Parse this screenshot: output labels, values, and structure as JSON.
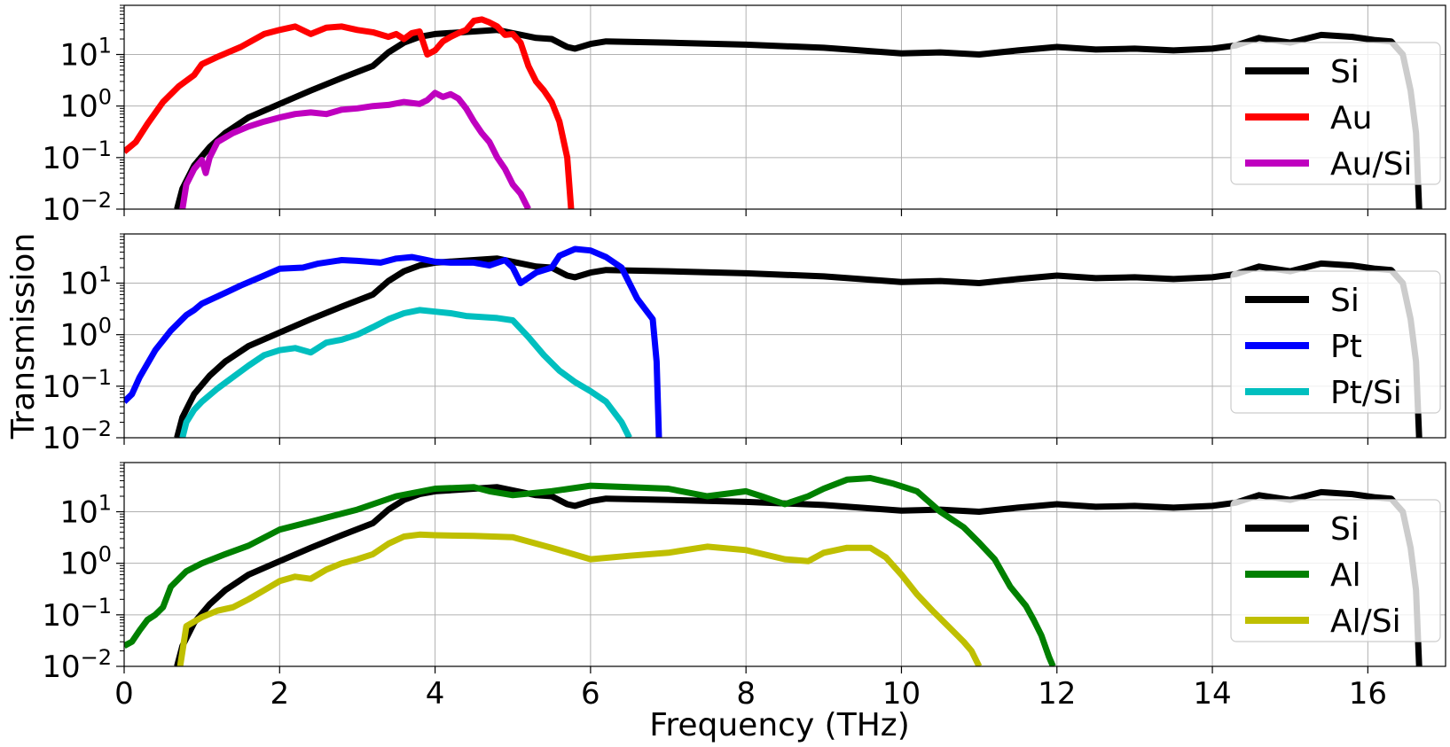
{
  "chart_data": {
    "type": "line",
    "xlabel": "Frequency (THz)",
    "ylabel": "Transmission",
    "xscale": "linear",
    "yscale": "log",
    "xlim": [
      0,
      17
    ],
    "ylim": [
      0.01,
      90
    ],
    "grid": true,
    "x_ticks": [
      0,
      2,
      4,
      6,
      8,
      10,
      12,
      14,
      16
    ],
    "x_tick_labels": [
      "0",
      "2",
      "4",
      "6",
      "8",
      "10",
      "12",
      "14",
      "16"
    ],
    "y_ticks": [
      0.01,
      0.1,
      1,
      10
    ],
    "y_tick_labels": [
      {
        "base": "10",
        "exp": "−2"
      },
      {
        "base": "10",
        "exp": "−1"
      },
      {
        "base": "10",
        "exp": "0"
      },
      {
        "base": "10",
        "exp": "1"
      }
    ],
    "panels": [
      {
        "legend_location": "right",
        "series": [
          {
            "name": "Si",
            "color": "#000000",
            "x": [
              0.68,
              0.75,
              0.9,
              1.1,
              1.3,
              1.6,
              2.0,
              2.4,
              2.8,
              3.2,
              3.4,
              3.6,
              3.8,
              4.0,
              4.5,
              4.8,
              5.0,
              5.3,
              5.5,
              5.7,
              5.8,
              6.0,
              6.2,
              7,
              8,
              9,
              10,
              10.5,
              11,
              11.5,
              12,
              12.5,
              13,
              13.5,
              14,
              14.3,
              14.6,
              15,
              15.4,
              15.8,
              16.1,
              16.3,
              16.45,
              16.55,
              16.62,
              16.66
            ],
            "y": [
              0.01,
              0.025,
              0.07,
              0.16,
              0.3,
              0.6,
              1.1,
              2,
              3.5,
              6,
              11,
              17,
              22,
              25,
              28,
              30,
              26,
              21,
              20,
              14,
              13,
              16,
              18,
              17,
              15.5,
              13.5,
              10.5,
              11,
              10,
              12,
              14,
              12.5,
              13,
              12,
              13,
              15,
              21,
              17,
              24,
              22,
              19,
              18,
              10,
              2,
              0.3,
              0.01
            ]
          },
          {
            "name": "Au",
            "color": "#ff0000",
            "x": [
              0,
              0.15,
              0.3,
              0.5,
              0.7,
              0.9,
              1.0,
              1.2,
              1.5,
              1.8,
              2.0,
              2.2,
              2.4,
              2.6,
              2.8,
              3.0,
              3.2,
              3.4,
              3.5,
              3.6,
              3.7,
              3.8,
              3.9,
              4.0,
              4.1,
              4.2,
              4.3,
              4.4,
              4.5,
              4.6,
              4.7,
              4.8,
              4.9,
              5.0,
              5.1,
              5.2,
              5.3,
              5.4,
              5.5,
              5.6,
              5.7,
              5.75
            ],
            "y": [
              0.13,
              0.2,
              0.45,
              1.2,
              2.4,
              4,
              6.5,
              9,
              14,
              25,
              30,
              35,
              25,
              33,
              35,
              30,
              27,
              22,
              25,
              20,
              26,
              28,
              10,
              12,
              18,
              22,
              26,
              30,
              45,
              48,
              42,
              35,
              24,
              25,
              17,
              6,
              3,
              2,
              1.2,
              0.5,
              0.1,
              0.01
            ]
          },
          {
            "name": "Au/Si",
            "color": "#bf00bf",
            "x": [
              0.75,
              0.8,
              0.9,
              1.0,
              1.05,
              1.1,
              1.2,
              1.4,
              1.6,
              1.8,
              2.0,
              2.2,
              2.4,
              2.6,
              2.8,
              3.0,
              3.2,
              3.4,
              3.6,
              3.8,
              3.9,
              4.0,
              4.1,
              4.2,
              4.3,
              4.4,
              4.5,
              4.6,
              4.7,
              4.8,
              4.9,
              5.0,
              5.1,
              5.2
            ],
            "y": [
              0.01,
              0.03,
              0.06,
              0.09,
              0.05,
              0.1,
              0.2,
              0.3,
              0.4,
              0.5,
              0.6,
              0.7,
              0.75,
              0.7,
              0.85,
              0.9,
              1.0,
              1.05,
              1.2,
              1.1,
              1.3,
              1.8,
              1.5,
              1.7,
              1.4,
              0.9,
              0.5,
              0.3,
              0.2,
              0.1,
              0.06,
              0.03,
              0.02,
              0.01
            ]
          }
        ]
      },
      {
        "legend_location": "right",
        "series": [
          {
            "name": "Si",
            "color": "#000000",
            "x": [
              0.68,
              0.75,
              0.9,
              1.1,
              1.3,
              1.6,
              2.0,
              2.4,
              2.8,
              3.2,
              3.4,
              3.6,
              3.8,
              4.0,
              4.5,
              4.8,
              5.0,
              5.3,
              5.5,
              5.7,
              5.8,
              6.0,
              6.2,
              7,
              8,
              9,
              10,
              10.5,
              11,
              11.5,
              12,
              12.5,
              13,
              13.5,
              14,
              14.3,
              14.6,
              15,
              15.4,
              15.8,
              16.1,
              16.3,
              16.45,
              16.55,
              16.62,
              16.66
            ],
            "y": [
              0.01,
              0.025,
              0.07,
              0.16,
              0.3,
              0.6,
              1.1,
              2,
              3.5,
              6,
              11,
              17,
              22,
              25,
              28,
              30,
              26,
              21,
              20,
              14,
              13,
              16,
              18,
              17,
              15.5,
              13.5,
              10.5,
              11,
              10,
              12,
              14,
              12.5,
              13,
              12,
              13,
              15,
              21,
              17,
              24,
              22,
              19,
              18,
              10,
              2,
              0.3,
              0.01
            ]
          },
          {
            "name": "Pt",
            "color": "#0000ff",
            "x": [
              0,
              0.1,
              0.2,
              0.4,
              0.6,
              0.8,
              0.9,
              1.0,
              1.2,
              1.5,
              1.8,
              2.0,
              2.3,
              2.5,
              2.8,
              3.0,
              3.3,
              3.5,
              3.7,
              3.8,
              4.0,
              4.2,
              4.5,
              4.7,
              4.9,
              5.0,
              5.1,
              5.3,
              5.5,
              5.6,
              5.8,
              6.0,
              6.2,
              6.4,
              6.6,
              6.8,
              6.85,
              6.88
            ],
            "y": [
              0.05,
              0.07,
              0.15,
              0.5,
              1.2,
              2.4,
              3,
              4,
              5.5,
              9,
              14,
              19,
              20,
              24,
              28,
              27,
              25,
              30,
              32,
              30,
              26,
              25,
              25,
              22,
              28,
              20,
              10,
              16,
              20,
              34,
              46,
              43,
              32,
              20,
              5,
              2,
              0.3,
              0.01
            ]
          },
          {
            "name": "Pt/Si",
            "color": "#00bfbf",
            "x": [
              0.75,
              0.8,
              0.9,
              1.0,
              1.2,
              1.4,
              1.6,
              1.8,
              2.0,
              2.2,
              2.4,
              2.6,
              2.8,
              3.0,
              3.2,
              3.4,
              3.6,
              3.8,
              4.0,
              4.2,
              4.4,
              4.6,
              4.8,
              5.0,
              5.2,
              5.4,
              5.6,
              5.8,
              6.0,
              6.2,
              6.4,
              6.5
            ],
            "y": [
              0.01,
              0.02,
              0.035,
              0.05,
              0.09,
              0.15,
              0.25,
              0.4,
              0.5,
              0.55,
              0.45,
              0.7,
              0.8,
              1.0,
              1.4,
              2.0,
              2.6,
              3.0,
              2.8,
              2.6,
              2.3,
              2.2,
              2.1,
              1.9,
              0.9,
              0.4,
              0.2,
              0.12,
              0.08,
              0.05,
              0.02,
              0.01
            ]
          }
        ]
      },
      {
        "legend_location": "right",
        "series": [
          {
            "name": "Si",
            "color": "#000000",
            "x": [
              0.68,
              0.75,
              0.9,
              1.1,
              1.3,
              1.6,
              2.0,
              2.4,
              2.8,
              3.2,
              3.4,
              3.6,
              3.8,
              4.0,
              4.5,
              4.8,
              5.0,
              5.3,
              5.5,
              5.7,
              5.8,
              6.0,
              6.2,
              7,
              8,
              9,
              10,
              10.5,
              11,
              11.5,
              12,
              12.5,
              13,
              13.5,
              14,
              14.3,
              14.6,
              15,
              15.4,
              15.8,
              16.1,
              16.3,
              16.45,
              16.55,
              16.62,
              16.66
            ],
            "y": [
              0.01,
              0.025,
              0.07,
              0.16,
              0.3,
              0.6,
              1.1,
              2,
              3.5,
              6,
              11,
              17,
              22,
              25,
              28,
              30,
              26,
              21,
              20,
              14,
              13,
              16,
              18,
              17,
              15.5,
              13.5,
              10.5,
              11,
              10,
              12,
              14,
              12.5,
              13,
              12,
              13,
              15,
              21,
              17,
              24,
              22,
              19,
              18,
              10,
              2,
              0.3,
              0.01
            ]
          },
          {
            "name": "Al",
            "color": "#008000",
            "x": [
              0,
              0.1,
              0.2,
              0.3,
              0.4,
              0.5,
              0.6,
              0.8,
              1.0,
              1.3,
              1.6,
              2.0,
              2.5,
              3.0,
              3.5,
              4.0,
              4.5,
              4.7,
              5.0,
              5.5,
              6.0,
              6.5,
              7.0,
              7.5,
              8.0,
              8.2,
              8.5,
              8.8,
              9.0,
              9.3,
              9.6,
              9.9,
              10.2,
              10.5,
              10.8,
              11.0,
              11.2,
              11.4,
              11.6,
              11.7,
              11.8,
              11.9,
              11.95
            ],
            "y": [
              0.025,
              0.03,
              0.05,
              0.08,
              0.1,
              0.14,
              0.35,
              0.7,
              1.0,
              1.5,
              2.2,
              4.5,
              7,
              11,
              20,
              28,
              30,
              25,
              21,
              25,
              32,
              30,
              28,
              20,
              25,
              20,
              14,
              20,
              28,
              42,
              45,
              35,
              25,
              10,
              5,
              2.5,
              1.2,
              0.35,
              0.15,
              0.08,
              0.04,
              0.015,
              0.01
            ]
          },
          {
            "name": "Al/Si",
            "color": "#bfbf00",
            "x": [
              0.72,
              0.8,
              1.0,
              1.2,
              1.4,
              1.6,
              1.8,
              2.0,
              2.2,
              2.4,
              2.6,
              2.8,
              3.0,
              3.2,
              3.4,
              3.6,
              3.8,
              4.0,
              4.5,
              5.0,
              5.5,
              6.0,
              6.5,
              7.0,
              7.5,
              8.0,
              8.5,
              8.8,
              9.0,
              9.3,
              9.6,
              9.8,
              10.0,
              10.2,
              10.4,
              10.6,
              10.8,
              10.9,
              11.0
            ],
            "y": [
              0.01,
              0.06,
              0.09,
              0.12,
              0.14,
              0.2,
              0.3,
              0.45,
              0.55,
              0.5,
              0.75,
              1.0,
              1.2,
              1.5,
              2.4,
              3.3,
              3.6,
              3.5,
              3.4,
              3.2,
              2.0,
              1.2,
              1.4,
              1.6,
              2.1,
              1.8,
              1.2,
              1.1,
              1.6,
              2.0,
              2.0,
              1.3,
              0.6,
              0.25,
              0.12,
              0.06,
              0.03,
              0.02,
              0.01
            ]
          }
        ]
      }
    ]
  }
}
